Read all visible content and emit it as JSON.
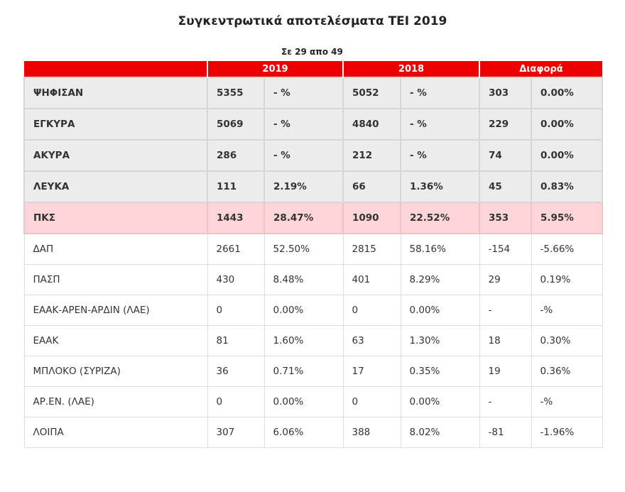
{
  "title": "Συγκεντρωτικά αποτελέσματα ΤΕΙ 2019",
  "subtitle": "Σε 29 απο 49",
  "headers": [
    "",
    "2019",
    "2018",
    "Διαφορά"
  ],
  "colors": {
    "header": "#ee0000",
    "highlight": "#fdd5d9",
    "summary": "#ececec"
  },
  "rows": [
    {
      "style": "bold",
      "cells": [
        "ΨΗΦΙΣΑΝ",
        "5355",
        "- %",
        "5052",
        "- %",
        "303",
        "0.00%"
      ]
    },
    {
      "style": "bold",
      "cells": [
        "ΕΓΚΥΡΑ",
        "5069",
        "- %",
        "4840",
        "- %",
        "229",
        "0.00%"
      ]
    },
    {
      "style": "bold",
      "cells": [
        "ΑΚΥΡΑ",
        "286",
        "- %",
        "212",
        "- %",
        "74",
        "0.00%"
      ]
    },
    {
      "style": "bold",
      "cells": [
        "ΛΕΥΚΑ",
        "111",
        "2.19%",
        "66",
        "1.36%",
        "45",
        "0.83%"
      ]
    },
    {
      "style": "hl",
      "cells": [
        "ΠΚΣ",
        "1443",
        "28.47%",
        "1090",
        "22.52%",
        "353",
        "5.95%"
      ]
    },
    {
      "style": "plain",
      "cells": [
        "ΔΑΠ",
        "2661",
        "52.50%",
        "2815",
        "58.16%",
        "-154",
        "-5.66%"
      ]
    },
    {
      "style": "plain",
      "cells": [
        "ΠΑΣΠ",
        "430",
        "8.48%",
        "401",
        "8.29%",
        "29",
        "0.19%"
      ]
    },
    {
      "style": "plain",
      "cells": [
        "ΕΑΑΚ-ΑΡΕΝ-ΑΡΔΙΝ (ΛΑΕ)",
        "0",
        "0.00%",
        "0",
        "0.00%",
        "-",
        "-%"
      ]
    },
    {
      "style": "plain",
      "cells": [
        "ΕΑΑΚ",
        "81",
        "1.60%",
        "63",
        "1.30%",
        "18",
        "0.30%"
      ]
    },
    {
      "style": "plain",
      "cells": [
        "ΜΠΛΟΚΟ (ΣΥΡΙΖΑ)",
        "36",
        "0.71%",
        "17",
        "0.35%",
        "19",
        "0.36%"
      ]
    },
    {
      "style": "plain",
      "cells": [
        "ΑΡ.ΕΝ. (ΛΑΕ)",
        "0",
        "0.00%",
        "0",
        "0.00%",
        "-",
        "-%"
      ]
    },
    {
      "style": "plain",
      "cells": [
        "ΛΟΙΠΑ",
        "307",
        "6.06%",
        "388",
        "8.02%",
        "-81",
        "-1.96%"
      ]
    }
  ]
}
